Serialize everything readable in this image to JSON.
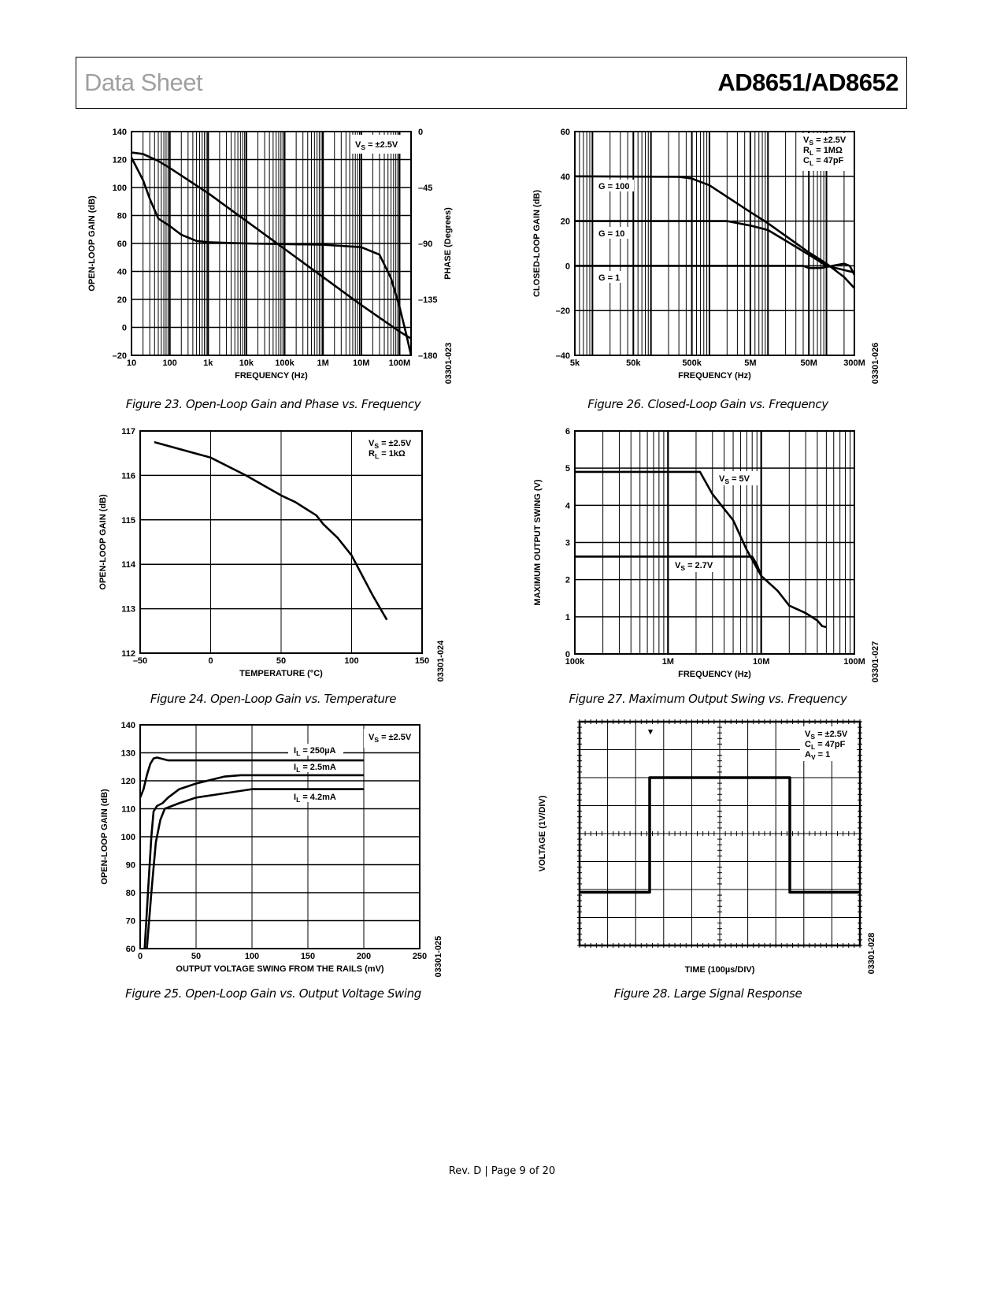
{
  "header": {
    "left": "Data Sheet",
    "right": "AD8651/AD8652"
  },
  "footer": "Rev. D | Page 9 of 20",
  "chart_data": [
    {
      "id": "fig23",
      "type": "line",
      "caption": "Figure 23. Open-Loop Gain and Phase vs. Frequency",
      "code": "03301-023",
      "xlabel": "FREQUENCY (Hz)",
      "ylabel": "OPEN-LOOP GAIN (dB)",
      "y2label": "PHASE (Degrees)",
      "xscale": "log",
      "xlim": [
        10,
        200000000
      ],
      "ylim": [
        -20,
        140
      ],
      "y2lim": [
        -180,
        0
      ],
      "xticks": [
        10,
        100,
        1000,
        10000,
        100000,
        1000000,
        10000000,
        100000000
      ],
      "xtick_labels": [
        "10",
        "100",
        "1k",
        "10k",
        "100k",
        "1M",
        "10M",
        "100M"
      ],
      "yticks": [
        -20,
        0,
        20,
        40,
        60,
        80,
        100,
        120,
        140
      ],
      "ytick_labels": [
        "–20",
        "0",
        "20",
        "40",
        "60",
        "80",
        "100",
        "120",
        "140"
      ],
      "y2ticks": [
        -180,
        -135,
        -90,
        -45,
        0
      ],
      "y2tick_labels": [
        "–180",
        "–135",
        "–90",
        "–45",
        "0"
      ],
      "grid": true,
      "annotations": [
        [
          [
            "V",
            "S",
            " = ±2.5V"
          ]
        ]
      ],
      "series": [
        {
          "name": "Gain",
          "axis": "y",
          "x": [
            10,
            20,
            50,
            100,
            1000,
            10000,
            100000,
            1000000,
            10000000,
            100000000,
            200000000
          ],
          "y": [
            125,
            124,
            119,
            114,
            96,
            76,
            56,
            36,
            16,
            -3,
            -8
          ]
        },
        {
          "name": "Phase",
          "axis": "y2",
          "x": [
            10,
            20,
            30,
            50,
            100,
            200,
            500,
            1000,
            10000,
            1000000,
            10000000,
            30000000,
            60000000,
            100000000,
            150000000,
            200000000
          ],
          "y": [
            -21,
            -39,
            -54,
            -70,
            -76,
            -83,
            -88,
            -89,
            -90,
            -91,
            -93,
            -99,
            -118,
            -141,
            -163,
            -180
          ]
        }
      ]
    },
    {
      "id": "fig24",
      "type": "line",
      "caption": "Figure 24. Open-Loop Gain vs. Temperature",
      "code": "03301-024",
      "xlabel": "TEMPERATURE (°C)",
      "ylabel": "OPEN-LOOP GAIN (dB)",
      "xscale": "linear",
      "xlim": [
        -50,
        150
      ],
      "ylim": [
        112,
        117
      ],
      "xticks": [
        -50,
        0,
        50,
        100,
        150
      ],
      "xtick_labels": [
        "–50",
        "0",
        "50",
        "100",
        "150"
      ],
      "yticks": [
        112,
        113,
        114,
        115,
        116,
        117
      ],
      "ytick_labels": [
        "112",
        "113",
        "114",
        "115",
        "116",
        "117"
      ],
      "grid": true,
      "annotations": [
        [
          [
            "V",
            "S",
            " = ±2.5V"
          ],
          [
            "R",
            "L",
            " = 1kΩ"
          ]
        ]
      ],
      "series": [
        {
          "name": "Gain",
          "x": [
            -40,
            0,
            25,
            50,
            60,
            75,
            80,
            90,
            100,
            115,
            125
          ],
          "y": [
            116.75,
            116.4,
            116.0,
            115.55,
            115.4,
            115.1,
            114.9,
            114.6,
            114.2,
            113.3,
            112.75
          ]
        }
      ]
    },
    {
      "id": "fig25",
      "type": "line",
      "caption": "Figure 25. Open-Loop Gain vs. Output Voltage Swing",
      "code": "03301-025",
      "xlabel": "OUTPUT VOLTAGE SWING FROM THE RAILS (mV)",
      "ylabel": "OPEN-LOOP GAIN (dB)",
      "xscale": "linear",
      "xlim": [
        0,
        250
      ],
      "ylim": [
        60,
        140
      ],
      "xticks": [
        0,
        50,
        100,
        150,
        200,
        250
      ],
      "xtick_labels": [
        "0",
        "50",
        "100",
        "150",
        "200",
        "250"
      ],
      "yticks": [
        60,
        70,
        80,
        90,
        100,
        110,
        120,
        130,
        140
      ],
      "ytick_labels": [
        "60",
        "70",
        "80",
        "90",
        "100",
        "110",
        "120",
        "130",
        "140"
      ],
      "grid": true,
      "annotations": [
        [
          [
            "V",
            "S",
            " = ±2.5V"
          ]
        ],
        [
          [
            "I",
            "L",
            " = 250µA"
          ]
        ],
        [
          [
            "I",
            "L",
            " = 2.5mA"
          ]
        ],
        [
          [
            "I",
            "L",
            " = 4.2mA"
          ]
        ]
      ],
      "series": [
        {
          "name": "IL = 250µA",
          "x": [
            0,
            3,
            6,
            9,
            12,
            15,
            20,
            25,
            200
          ],
          "y": [
            114,
            117,
            122,
            126,
            128,
            128.3,
            127.8,
            127.3,
            127.3
          ]
        },
        {
          "name": "IL = 2.5mA",
          "x": [
            4,
            7,
            10,
            12,
            15,
            20,
            25,
            35,
            50,
            75,
            90,
            200
          ],
          "y": [
            60,
            80,
            100,
            109,
            111,
            112,
            114,
            117,
            119,
            121.5,
            122,
            122
          ]
        },
        {
          "name": "IL = 4.2mA",
          "x": [
            6,
            10,
            14,
            18,
            22,
            35,
            50,
            75,
            100,
            200
          ],
          "y": [
            60,
            80,
            98,
            106,
            110,
            112,
            114,
            115.5,
            117,
            117
          ]
        }
      ]
    },
    {
      "id": "fig26",
      "type": "line",
      "caption": "Figure 26. Closed-Loop Gain vs. Frequency",
      "code": "03301-026",
      "xlabel": "FREQUENCY (Hz)",
      "ylabel": "CLOSED-LOOP GAIN (dB)",
      "xscale": "log",
      "xlim": [
        5000,
        300000000
      ],
      "ylim": [
        -40,
        60
      ],
      "xticks": [
        5000,
        50000,
        500000,
        5000000,
        50000000,
        300000000
      ],
      "xtick_labels": [
        "5k",
        "50k",
        "500k",
        "5M",
        "50M",
        "300M"
      ],
      "yticks": [
        -40,
        -20,
        0,
        20,
        40,
        60
      ],
      "ytick_labels": [
        "–40",
        "–20",
        "0",
        "20",
        "40",
        "60"
      ],
      "grid": true,
      "annotations": [
        [
          [
            "V",
            "S",
            " = ±2.5V"
          ],
          [
            "R",
            "L",
            " = 1MΩ"
          ],
          [
            "C",
            "L",
            " = 47pF"
          ]
        ],
        [
          [
            "G = 100",
            "",
            ""
          ]
        ],
        [
          [
            "G = 10",
            "",
            ""
          ]
        ],
        [
          [
            "G = 1",
            "",
            ""
          ]
        ]
      ],
      "series": [
        {
          "name": "G = 100",
          "x": [
            5000,
            300000,
            500000,
            1000000,
            5000000,
            10000000,
            50000000,
            100000000,
            200000000,
            300000000
          ],
          "y": [
            40,
            39.8,
            39,
            36,
            24,
            19,
            6,
            1,
            -5,
            -10
          ]
        },
        {
          "name": "G = 10",
          "x": [
            5000,
            2000000,
            5000000,
            10000000,
            50000000,
            100000000,
            300000000
          ],
          "y": [
            20,
            20,
            18,
            16,
            5,
            0,
            -3
          ]
        },
        {
          "name": "G = 1",
          "x": [
            5000,
            40000000,
            50000000,
            80000000,
            100000000,
            200000000,
            250000000,
            300000000
          ],
          "y": [
            0,
            0,
            -1,
            -1,
            -0.5,
            1,
            0,
            -4
          ]
        }
      ]
    },
    {
      "id": "fig27",
      "type": "line",
      "caption": "Figure 27. Maximum Output Swing vs. Frequency",
      "code": "03301-027",
      "xlabel": "FREQUENCY (Hz)",
      "ylabel": "MAXIMUM OUTPUT SWING (V)",
      "xscale": "log",
      "xlim": [
        100000,
        100000000
      ],
      "ylim": [
        0,
        6
      ],
      "xticks": [
        100000,
        1000000,
        10000000,
        100000000
      ],
      "xtick_labels": [
        "100k",
        "1M",
        "10M",
        "100M"
      ],
      "yticks": [
        0,
        1,
        2,
        3,
        4,
        5,
        6
      ],
      "ytick_labels": [
        "0",
        "1",
        "2",
        "3",
        "4",
        "5",
        "6"
      ],
      "grid": true,
      "annotations": [
        [
          [
            "V",
            "S",
            " = 5V"
          ]
        ],
        [
          [
            "V",
            "S",
            " = 2.7V"
          ]
        ]
      ],
      "series": [
        {
          "name": "VS = 5V",
          "x": [
            100000,
            2200000,
            3000000,
            5000000,
            7000000,
            10000000,
            15000000,
            20000000,
            30000000,
            40000000,
            45000000,
            50000000
          ],
          "y": [
            4.9,
            4.9,
            4.3,
            3.6,
            2.8,
            2.1,
            1.7,
            1.3,
            1.1,
            0.9,
            0.75,
            0.72
          ]
        },
        {
          "name": "VS = 2.7V",
          "x": [
            100000,
            8000000,
            9000000,
            10000000
          ],
          "y": [
            2.62,
            2.62,
            2.4,
            2.1
          ]
        }
      ]
    },
    {
      "id": "fig28",
      "type": "line",
      "caption": "Figure 28. Large Signal Response",
      "code": "03301-028",
      "xlabel": "TIME (100µs/DIV)",
      "ylabel": "VOLTAGE (1V/DIV)",
      "xscale": "linear",
      "xlim": [
        0,
        1000
      ],
      "ylim": [
        -4,
        4
      ],
      "grid": true,
      "annotations": [
        [
          [
            "V",
            "S",
            " = ±2.5V"
          ],
          [
            "C",
            "L",
            " = 47pF"
          ],
          [
            "A",
            "V",
            " = 1"
          ]
        ]
      ],
      "series": [
        {
          "name": "Output",
          "x": [
            0,
            250,
            250,
            750,
            750,
            1000
          ],
          "y": [
            -2.1,
            -2.1,
            2.0,
            2.0,
            -2.1,
            -2.1
          ]
        }
      ]
    }
  ]
}
